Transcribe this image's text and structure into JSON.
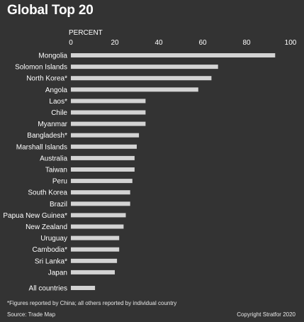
{
  "title": "Global Top 20",
  "footnote": "*Figures reported by China; all others reported by individual country",
  "source": "Source: Trade Map",
  "copyright": "Copyright Stratfor 2020",
  "colors": {
    "background": "#333333",
    "bar": "#d3d3d3",
    "text": "#ffffff"
  },
  "chart_data": {
    "type": "bar",
    "orientation": "horizontal",
    "axis_title": "PERCENT",
    "xlim": [
      0,
      100
    ],
    "ticks": [
      0,
      20,
      40,
      60,
      80,
      100
    ],
    "grid": false,
    "categories": [
      "Mongolia",
      "Solomon Islands",
      "North Korea*",
      "Angola",
      "Laos*",
      "Chile",
      "Myanmar",
      "Bangladesh*",
      "Marshall Islands",
      "Australia",
      "Taiwan",
      "Peru",
      "South Korea",
      "Brazil",
      "Papua New Guinea*",
      "New Zealand",
      "Uruguay",
      "Cambodia*",
      "Sri Lanka*",
      "Japan",
      "All countries"
    ],
    "values": [
      93,
      67,
      64,
      58,
      34,
      34,
      34,
      31,
      30,
      29,
      29,
      28,
      27,
      27,
      25,
      24,
      22,
      22,
      21,
      20,
      11
    ]
  }
}
